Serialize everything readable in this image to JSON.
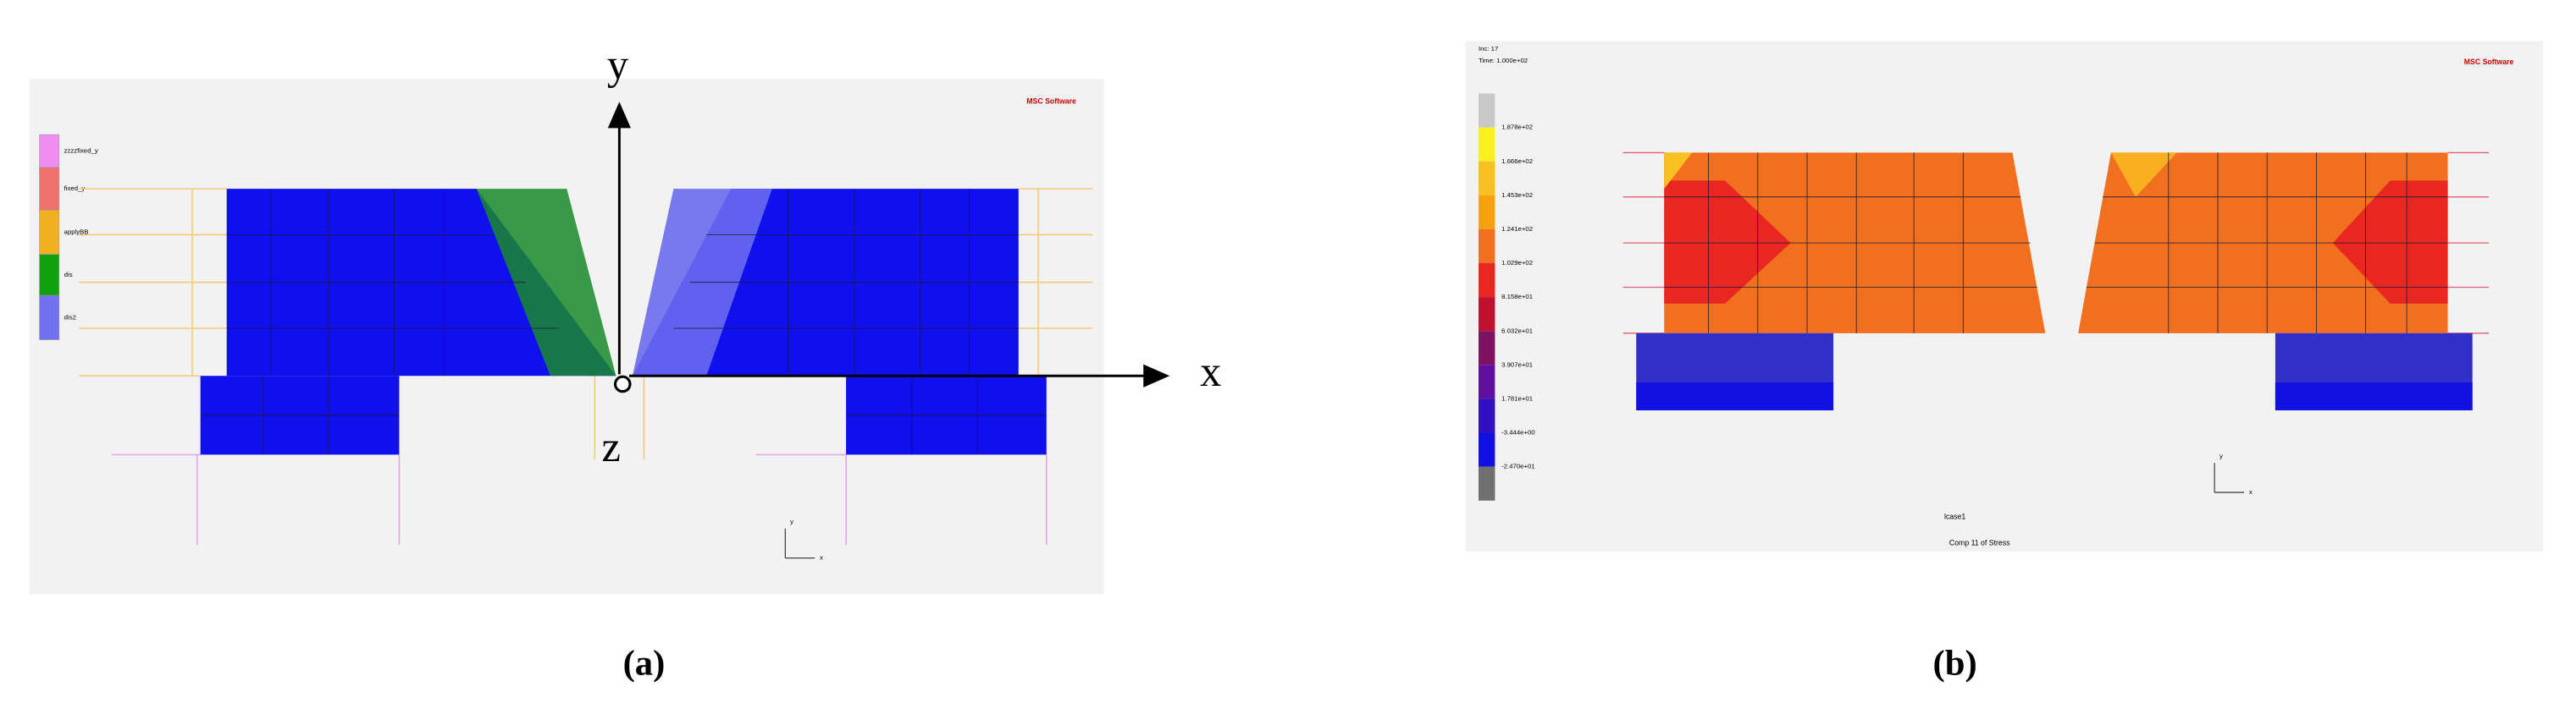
{
  "panel_a": {
    "legend": [
      "zzzzfixed_y",
      "fixed_y",
      "applyBB",
      "dis",
      "dis2"
    ],
    "axis_labels": {
      "y": "y",
      "x": "x",
      "z": "z"
    },
    "logo": "MSC Software",
    "triad": {
      "x": "x",
      "y": "y"
    },
    "caption": "(a)"
  },
  "panel_b": {
    "inc": "Inc: 17",
    "time": "Time: 1.000e+02",
    "colorbar_labels": [
      "1.878e+02",
      "1.666e+02",
      "1.453e+02",
      "1.241e+02",
      "1.029e+02",
      "8.158e+01",
      "6.032e+01",
      "3.907e+01",
      "1.781e+01",
      "-3.444e+00",
      "-2.470e+01"
    ],
    "logo": "MSC Software",
    "triad": {
      "x": "x",
      "y": "y"
    },
    "load_case": "lcase1",
    "result": "Comp 11 of Stress",
    "caption": "(b)"
  }
}
